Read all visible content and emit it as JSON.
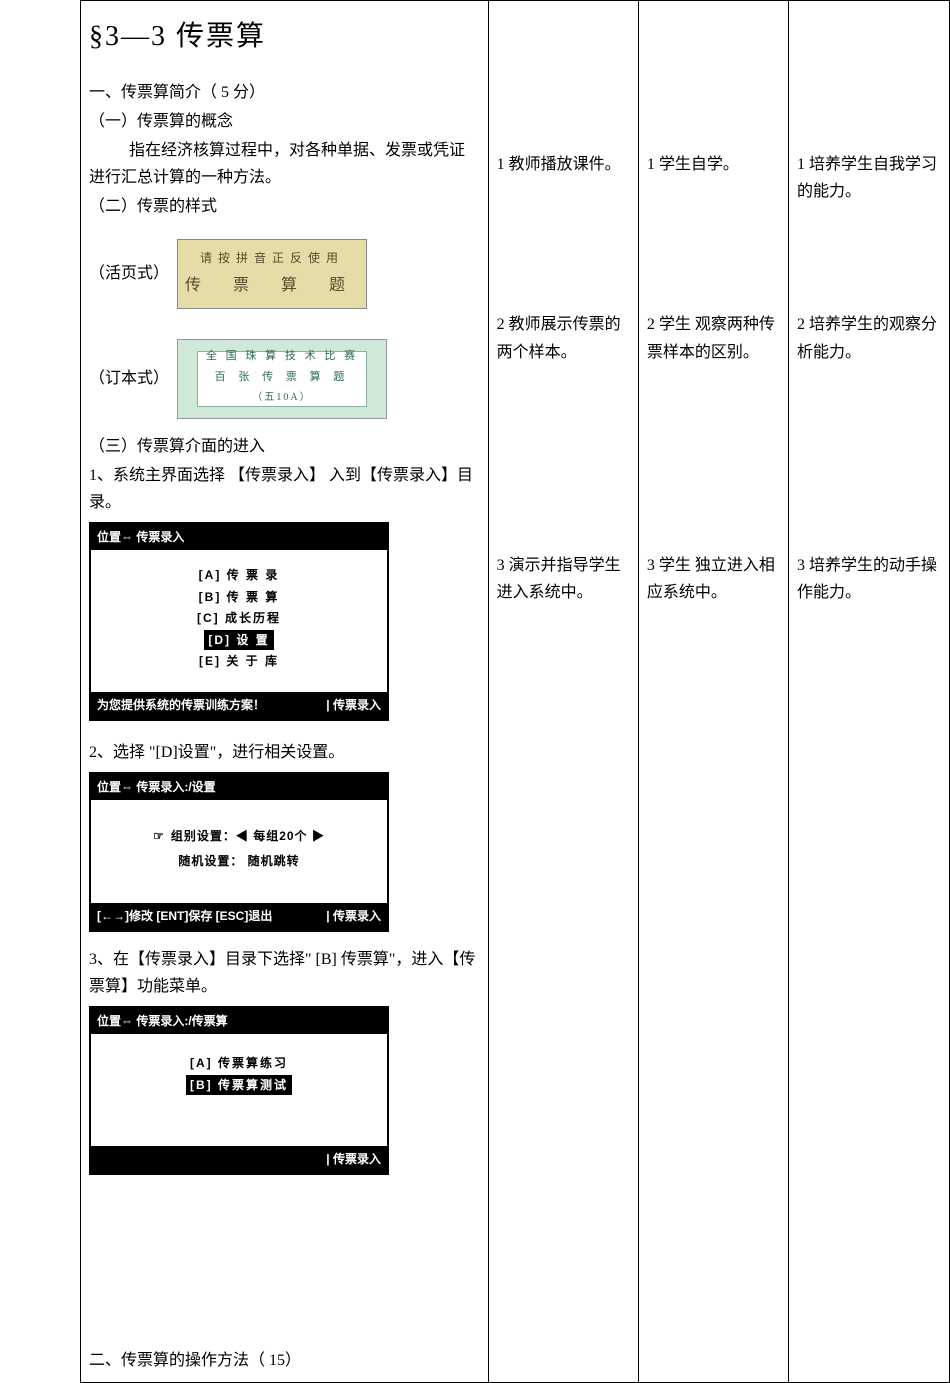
{
  "title": "§3—3 传票算",
  "col1": {
    "intro_h": "一、传票算简介（  5 分）",
    "s1h": "（一）传票算的概念",
    "s1p": "指在经济核算过程中，对各种单据、发票或凭证进行汇总计算的一种方法。",
    "s2h": "（二）传票的样式",
    "ticket1_label": "（活页式）",
    "ticket1_top": "请按拼音正反使用",
    "ticket1_big": "传 票 算 题",
    "ticket2_label": "（订本式）",
    "ticket2_l1": "全 国 珠 算 技 术 比 赛",
    "ticket2_l2": "百 张 传 票 算 题",
    "ticket2_l3": "（五10A）",
    "s3h": "（三）传票算介面的进入",
    "s3_1": "1、系统主界面选择 【传票录入】 入到【传票录入】目录。",
    "s3_2": "2、选择 \"[D]设置\"，进行相关设置。",
    "s3_3": "3、在【传票录入】目录下选择\"    [B] 传票算\"，进入【传票算】功能菜单。",
    "method_h": "二、传票算的操作方法（   15）"
  },
  "screens": {
    "s1": {
      "hdr_l": "位置⇔ 传票录入",
      "rows": [
        "[A] 传 票 录",
        "[B] 传 票 算",
        "[C] 成长历程",
        "[D] 设    置",
        "[E] 关 于 库"
      ],
      "sel_index": 3,
      "ftr_l": "为您提供系统的传票训练方案！",
      "ftr_r": "| 传票录入"
    },
    "s2": {
      "hdr_l": "位置⇔ 传票录入:/设置",
      "line1": "组别设置：◀ 每组20个 ▶",
      "line2": "随机设置：  随机跳转",
      "ftr_l": "[←→]修改 [ENT]保存  [ESC]退出",
      "ftr_r": "| 传票录入"
    },
    "s3": {
      "hdr_l": "位置⇔ 传票录入:/传票算",
      "rows": [
        "[A] 传票算练习",
        "[B] 传票算测试"
      ],
      "sel_index": 1,
      "ftr_l": "",
      "ftr_r": "| 传票录入"
    }
  },
  "col2": {
    "r1": "1 教师播放课件。",
    "r2": "2 教师展示传票的两个样本。",
    "r3": "3 演示并指导学生进入系统中。"
  },
  "col3": {
    "r1": "1 学生自学。",
    "r2": "2 学生 观察两种传 票样本的区别。",
    "r3": "3 学生 独立进入相 应系统中。"
  },
  "col4": {
    "r1": "1 培养学生自我学习的能力。",
    "r2": "2 培养学生的观察分析能力。",
    "r3": "3 培养学生的动手操作能力。"
  },
  "colors": {
    "border": "#000000",
    "ticket_yellow_bg": "#e6dca8",
    "ticket_green_bg": "#d0e8d8",
    "ticket_green_text": "#2a6a4a"
  }
}
